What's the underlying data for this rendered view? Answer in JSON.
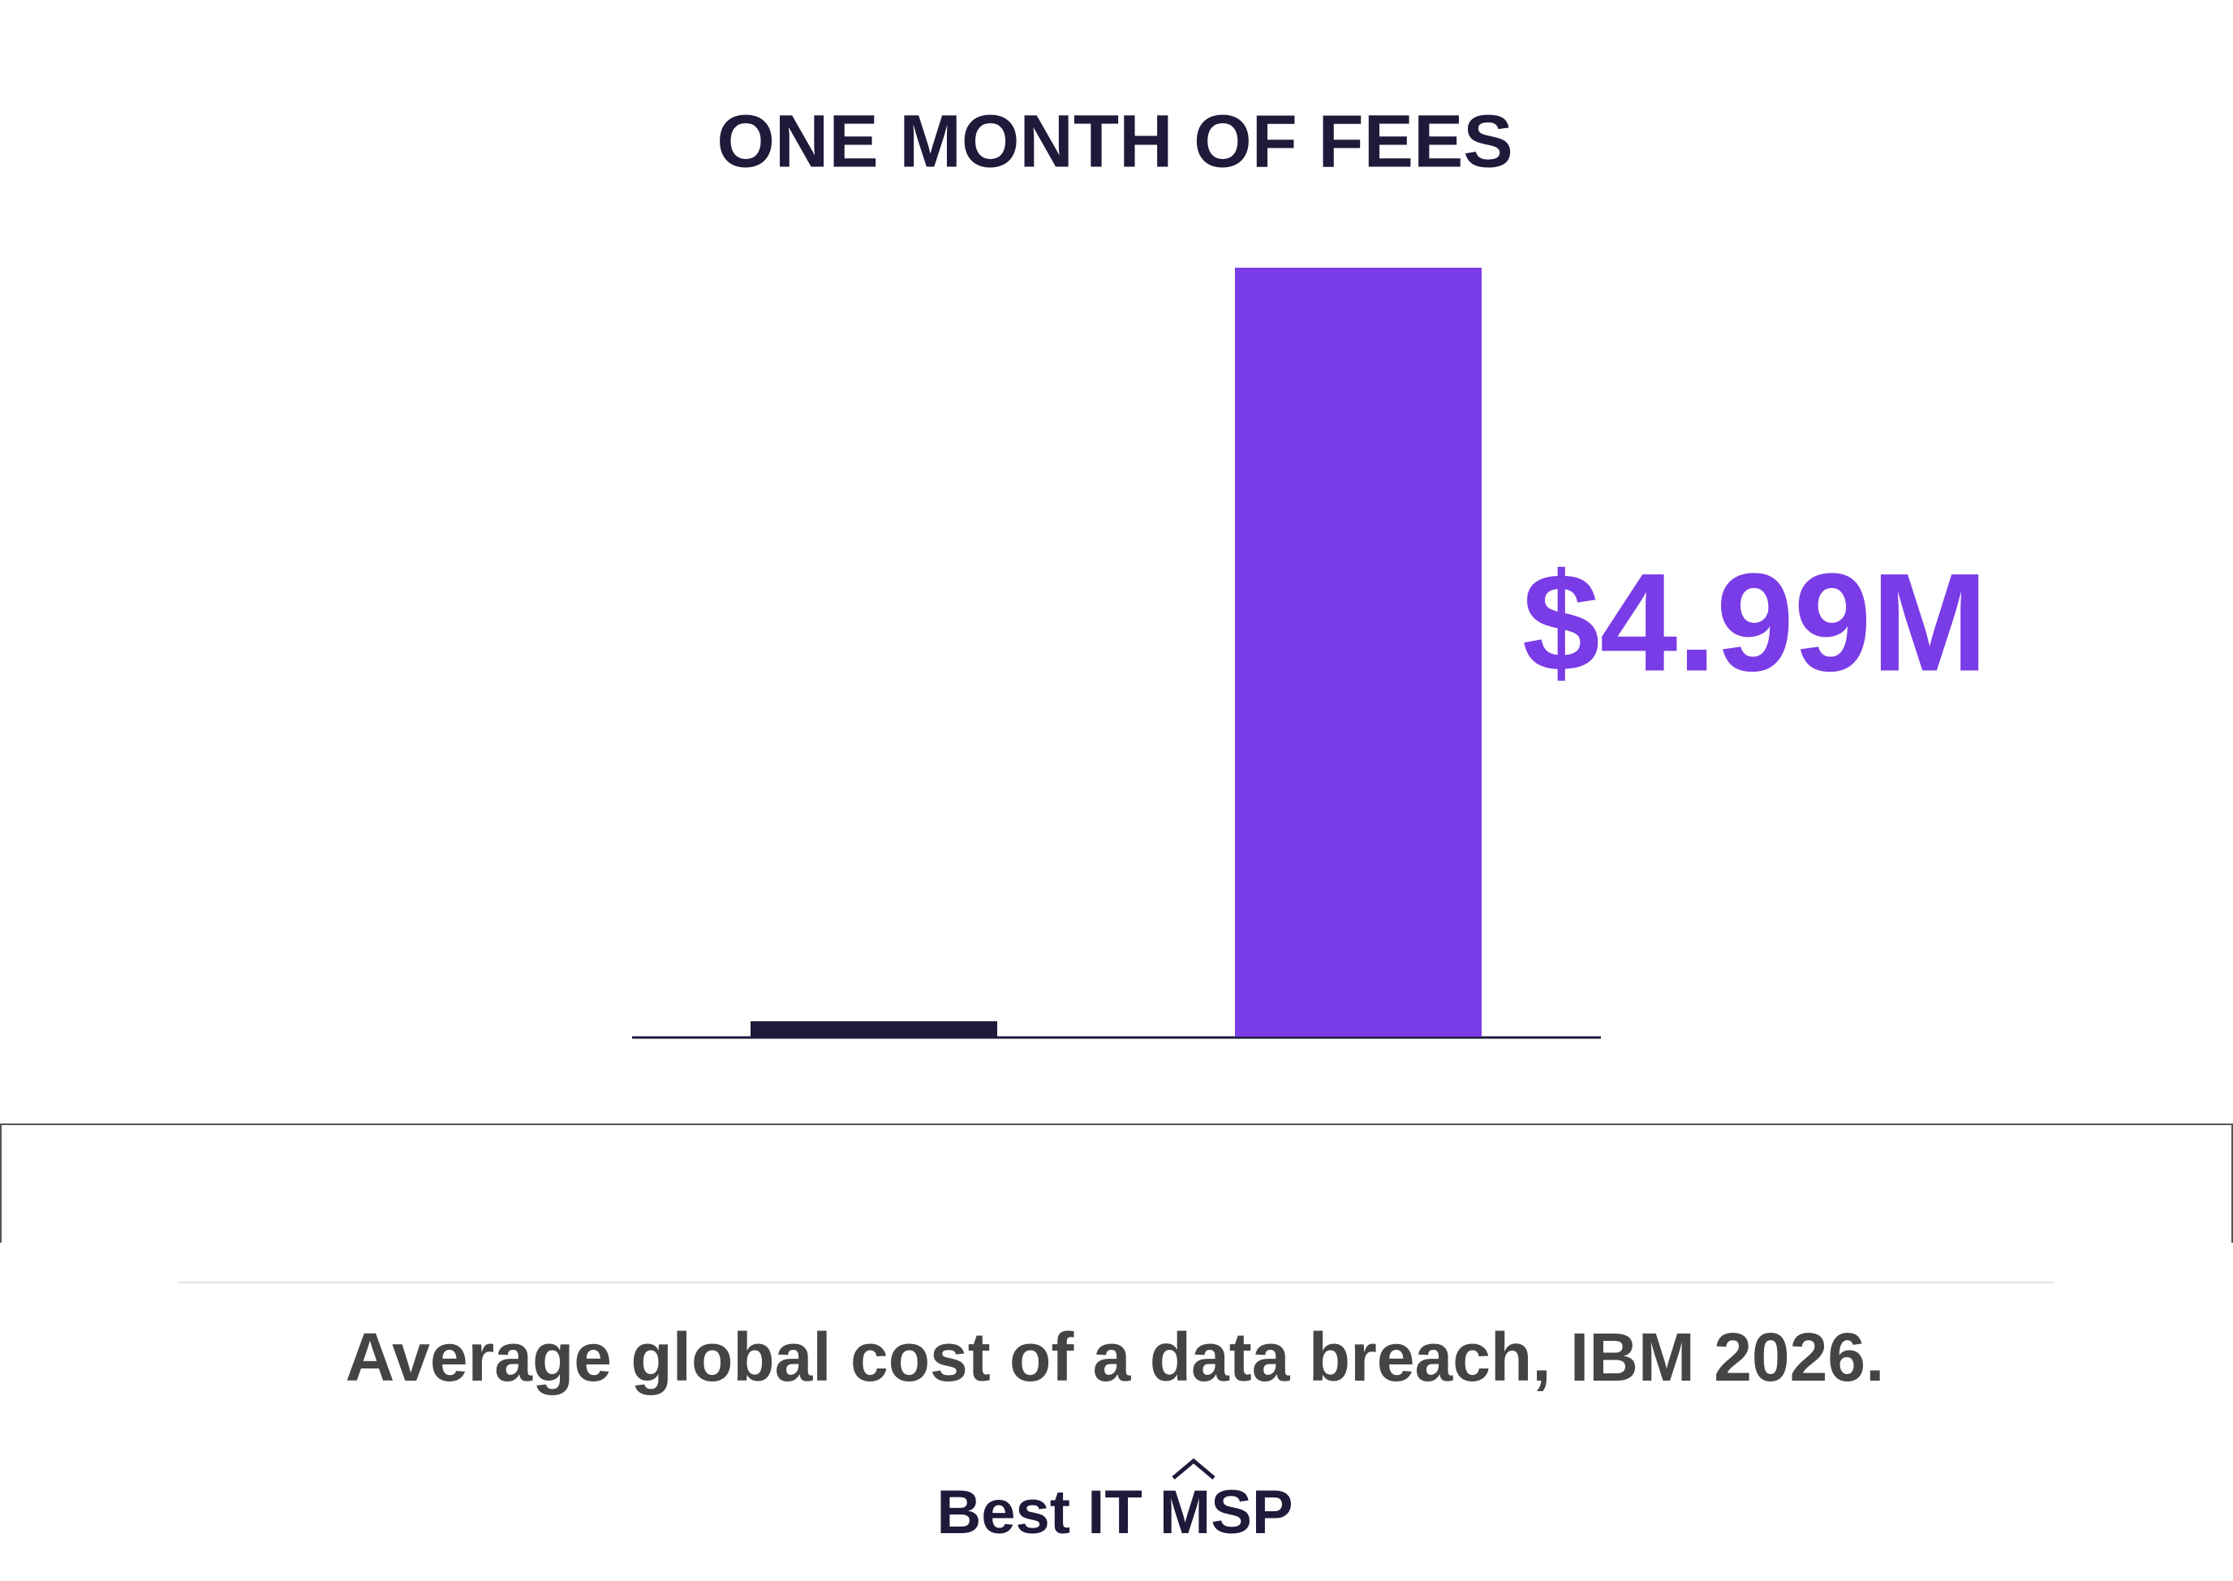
{
  "chart_data": {
    "type": "bar",
    "title": "ONE MONTH OF FEES",
    "categories": [
      null,
      null
    ],
    "values": [
      0.1,
      4.99
    ],
    "value_labels": [
      null,
      "$4.99M"
    ],
    "colors": [
      "#1e1a3a",
      "#7a3ce6"
    ]
  },
  "note": "Average global cost of a data breach, IBM 2026.",
  "brand": "Best IT MSP"
}
